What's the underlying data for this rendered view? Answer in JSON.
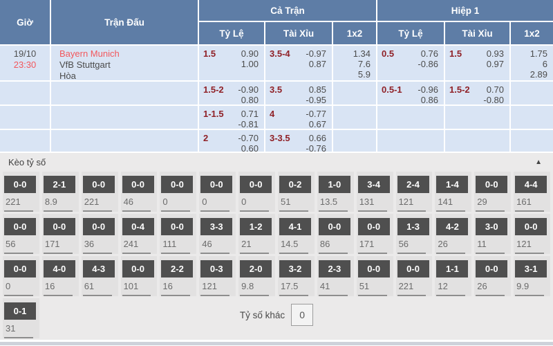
{
  "icons": {
    "collapse": "▲"
  },
  "colors": {
    "header_blue": "#5e7da6",
    "row_blue": "#d9e4f4",
    "line_maroon": "#8f2026",
    "accent_red": "#f2575c",
    "score_box_gray": "#4f4f4f",
    "section_gray": "#ebeaea"
  },
  "table": {
    "headers": {
      "time": "Giờ",
      "match": "Trận Đấu",
      "full_match": "Cả Trận",
      "first_half": "Hiệp 1",
      "handicap": "Tỷ Lệ",
      "over_under": "Tài Xỉu",
      "one_x_two": "1x2"
    },
    "match": {
      "date": "19/10",
      "time": "23:30",
      "home": "Bayern Munich",
      "away": "VfB Stuttgart",
      "draw": "Hòa"
    },
    "rows": [
      {
        "ft_hdp": {
          "line": "1.5",
          "o1": "0.90",
          "o2": "1.00"
        },
        "ft_ou": {
          "line": "3.5-4",
          "o1": "-0.97",
          "o2": "0.87"
        },
        "ft_1x2": [
          "1.34",
          "7.6",
          "5.9"
        ],
        "h1_hdp": {
          "line": "0.5",
          "o1": "0.76",
          "o2": "-0.86"
        },
        "h1_ou": {
          "line": "1.5",
          "o1": "0.93",
          "o2": "0.97"
        },
        "h1_1x2": [
          "1.75",
          "6",
          "2.89"
        ]
      },
      {
        "ft_hdp": {
          "line": "1.5-2",
          "o1": "-0.90",
          "o2": "0.80"
        },
        "ft_ou": {
          "line": "3.5",
          "o1": "0.85",
          "o2": "-0.95"
        },
        "ft_1x2": [],
        "h1_hdp": {
          "line": "0.5-1",
          "o1": "-0.96",
          "o2": "0.86"
        },
        "h1_ou": {
          "line": "1.5-2",
          "o1": "0.70",
          "o2": "-0.80"
        },
        "h1_1x2": []
      },
      {
        "ft_hdp": {
          "line": "1-1.5",
          "o1": "0.71",
          "o2": "-0.81"
        },
        "ft_ou": {
          "line": "4",
          "o1": "-0.77",
          "o2": "0.67"
        },
        "ft_1x2": [],
        "h1_hdp": null,
        "h1_ou": null,
        "h1_1x2": []
      },
      {
        "ft_hdp": {
          "line": "2",
          "o1": "-0.70",
          "o2": "0.60"
        },
        "ft_ou": {
          "line": "3-3.5",
          "o1": "0.66",
          "o2": "-0.76"
        },
        "ft_1x2": [],
        "h1_hdp": null,
        "h1_ou": null,
        "h1_1x2": []
      }
    ]
  },
  "correct_score": {
    "title": "Kèo tỷ số",
    "other_score_label": "Tỷ số khác",
    "other_score_value": "0",
    "rows": [
      [
        {
          "score": "0-0",
          "odds": "221"
        },
        {
          "score": "2-1",
          "odds": "8.9"
        },
        {
          "score": "0-0",
          "odds": "221"
        },
        {
          "score": "0-0",
          "odds": "46"
        },
        {
          "score": "0-0",
          "odds": "0"
        },
        {
          "score": "0-0",
          "odds": "0"
        },
        {
          "score": "0-0",
          "odds": "0"
        },
        {
          "score": "0-2",
          "odds": "51"
        },
        {
          "score": "1-0",
          "odds": "13.5"
        },
        {
          "score": "3-4",
          "odds": "131"
        },
        {
          "score": "2-4",
          "odds": "121"
        },
        {
          "score": "1-4",
          "odds": "141"
        },
        {
          "score": "0-0",
          "odds": "29"
        },
        {
          "score": "4-4",
          "odds": "161"
        }
      ],
      [
        {
          "score": "0-0",
          "odds": "56"
        },
        {
          "score": "0-0",
          "odds": "171"
        },
        {
          "score": "0-0",
          "odds": "36"
        },
        {
          "score": "0-4",
          "odds": "241"
        },
        {
          "score": "0-0",
          "odds": "111"
        },
        {
          "score": "3-3",
          "odds": "46"
        },
        {
          "score": "1-2",
          "odds": "21"
        },
        {
          "score": "4-1",
          "odds": "14.5"
        },
        {
          "score": "0-0",
          "odds": "86"
        },
        {
          "score": "0-0",
          "odds": "171"
        },
        {
          "score": "1-3",
          "odds": "56"
        },
        {
          "score": "4-2",
          "odds": "26"
        },
        {
          "score": "3-0",
          "odds": "11"
        },
        {
          "score": "0-0",
          "odds": "121"
        }
      ],
      [
        {
          "score": "0-0",
          "odds": "0"
        },
        {
          "score": "4-0",
          "odds": "16"
        },
        {
          "score": "4-3",
          "odds": "61"
        },
        {
          "score": "0-0",
          "odds": "101"
        },
        {
          "score": "2-2",
          "odds": "16"
        },
        {
          "score": "0-3",
          "odds": "121"
        },
        {
          "score": "2-0",
          "odds": "9.8"
        },
        {
          "score": "3-2",
          "odds": "17.5"
        },
        {
          "score": "2-3",
          "odds": "41"
        },
        {
          "score": "0-0",
          "odds": "51"
        },
        {
          "score": "0-0",
          "odds": "221"
        },
        {
          "score": "1-1",
          "odds": "12"
        },
        {
          "score": "0-0",
          "odds": "26"
        },
        {
          "score": "3-1",
          "odds": "9.9"
        }
      ],
      [
        {
          "score": "0-1",
          "odds": "31"
        }
      ]
    ]
  }
}
